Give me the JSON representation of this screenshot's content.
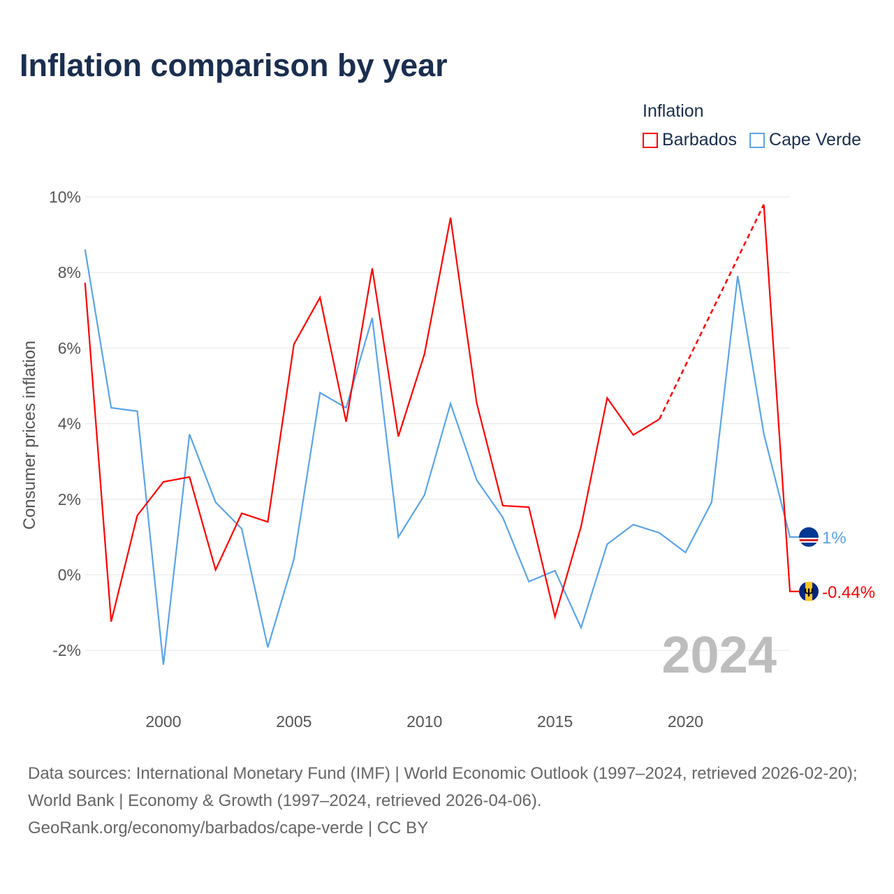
{
  "chart_data": {
    "type": "line",
    "title": "Inflation comparison by year",
    "legend_title": "Inflation",
    "legend_placement": "top-right",
    "ylabel": "Consumer prices inflation",
    "xlabel": "",
    "ylim": [
      -3.3,
      10
    ],
    "xlim": [
      1997,
      2024
    ],
    "y_ticks": [
      -2,
      0,
      2,
      4,
      6,
      8,
      10
    ],
    "y_tick_labels": [
      "-2%",
      "0%",
      "2%",
      "4%",
      "6%",
      "8%",
      "10%"
    ],
    "x_ticks": [
      2000,
      2005,
      2010,
      2015,
      2020
    ],
    "x_tick_labels": [
      "2000",
      "2005",
      "2010",
      "2015",
      "2020"
    ],
    "grid": true,
    "year_watermark": "2024",
    "x": [
      1997,
      1998,
      1999,
      2000,
      2001,
      2002,
      2003,
      2004,
      2005,
      2006,
      2007,
      2008,
      2009,
      2010,
      2011,
      2012,
      2013,
      2014,
      2015,
      2016,
      2017,
      2018,
      2019,
      2020,
      2021,
      2022,
      2023,
      2024
    ],
    "series": [
      {
        "name": "Barbados",
        "color": "#ff0000",
        "end_label": "-0.44%",
        "flag": "barbados-flag",
        "values": [
          7.73,
          -1.24,
          1.57,
          2.46,
          2.59,
          0.13,
          1.63,
          1.4,
          6.1,
          7.34,
          4.05,
          8.11,
          3.66,
          5.84,
          9.45,
          4.55,
          1.83,
          1.79,
          -1.11,
          1.28,
          4.68,
          3.7,
          4.12,
          null,
          null,
          null,
          9.8,
          -0.44
        ]
      },
      {
        "name": "Cape Verde",
        "color": "#5ba4e8",
        "end_label": "1%",
        "flag": "cape-verde-flag",
        "values": [
          8.61,
          4.42,
          4.33,
          -2.38,
          3.72,
          1.92,
          1.22,
          -1.92,
          0.41,
          4.82,
          4.42,
          6.8,
          1.0,
          2.11,
          4.53,
          2.51,
          1.52,
          -0.18,
          0.11,
          -1.4,
          0.81,
          1.33,
          1.11,
          0.59,
          1.92,
          7.91,
          3.73,
          1.0
        ]
      }
    ]
  },
  "source": {
    "line1": "Data sources: International Monetary Fund (IMF) | World Economic Outlook (1997–2024, retrieved 2026-02-20); World Bank | Economy & Growth (1997–2024, retrieved 2026-04-06).",
    "line2": "GeoRank.org/economy/barbados/cape-verde | CC BY"
  }
}
